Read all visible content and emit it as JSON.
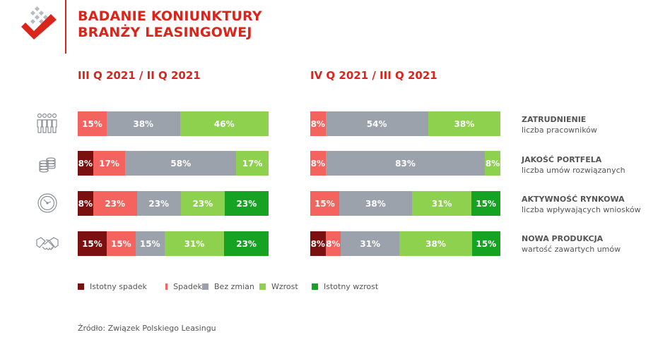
{
  "header": {
    "title_line1": "BADANIE KONIUNKTURY",
    "title_line2": "BRANŻY LEASINGOWEJ"
  },
  "colors": {
    "brand": "#d9251c",
    "istotny_spadek": "#7b1010",
    "spadek": "#f4635e",
    "bez_zmian": "#9ba2ab",
    "wzrost": "#8dd14f",
    "istotny_wzrost": "#16a324"
  },
  "chart_data": [
    {
      "type": "bar",
      "subtitle": "III Q 2021 / II Q 2021",
      "stacked": true,
      "orientation": "horizontal",
      "categories": [
        "ZATRUDNIENIE",
        "JAKOŚĆ PORTFELA",
        "AKTYWNOŚĆ RYNKOWA",
        "NOWA PRODUKCJA"
      ],
      "series": [
        {
          "name": "Istotny spadek",
          "values": [
            0,
            8,
            8,
            15
          ]
        },
        {
          "name": "Spadek",
          "values": [
            15,
            17,
            23,
            15
          ]
        },
        {
          "name": "Bez zmian",
          "values": [
            38,
            58,
            23,
            15
          ]
        },
        {
          "name": "Wzrost",
          "values": [
            46,
            17,
            23,
            31
          ]
        },
        {
          "name": "Istotny wzrost",
          "values": [
            0,
            0,
            23,
            23
          ]
        }
      ]
    },
    {
      "type": "bar",
      "subtitle": "IV Q 2021 / III Q 2021",
      "stacked": true,
      "orientation": "horizontal",
      "categories": [
        "ZATRUDNIENIE",
        "JAKOŚĆ PORTFELA",
        "AKTYWNOŚĆ RYNKOWA",
        "NOWA PRODUKCJA"
      ],
      "series": [
        {
          "name": "Istotny spadek",
          "values": [
            0,
            0,
            0,
            8
          ]
        },
        {
          "name": "Spadek",
          "values": [
            8,
            8,
            15,
            8
          ]
        },
        {
          "name": "Bez zmian",
          "values": [
            54,
            83,
            38,
            31
          ]
        },
        {
          "name": "Wzrost",
          "values": [
            38,
            8,
            31,
            38
          ]
        },
        {
          "name": "Istotny wzrost",
          "values": [
            0,
            0,
            15,
            15
          ]
        }
      ]
    }
  ],
  "row_labels": [
    {
      "title": "ZATRUDNIENIE",
      "subtitle": "liczba pracowników",
      "icon": "people-icon"
    },
    {
      "title": "JAKOŚĆ PORTFELA",
      "subtitle": "liczba umów rozwiązanych",
      "icon": "coins-icon"
    },
    {
      "title": "AKTYWNOŚĆ RYNKOWA",
      "subtitle": "liczba wpływających wniosków",
      "icon": "clock-icon"
    },
    {
      "title": "NOWA PRODUKCJA",
      "subtitle": "wartość zawartych umów",
      "icon": "handshake-icon"
    }
  ],
  "legend": [
    "Istotny spadek",
    "Spadek",
    "Bez zmian",
    "Wzrost",
    "Istotny wzrost"
  ],
  "source": "Źródło: Związek Polskiego Leasingu"
}
